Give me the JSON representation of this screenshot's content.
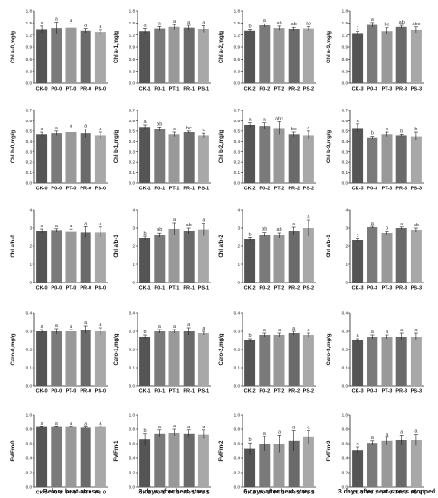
{
  "column_titles": [
    "Before heat-stress",
    "3 days after heat-stress",
    "6 days after heat-stress",
    "3 days after heat-stress stopped"
  ],
  "chart_data": [
    {
      "type": "bar",
      "row": 0,
      "col": 0,
      "ylabel": "Chl a-0,mg/g",
      "ylim": [
        0,
        1.8
      ],
      "yticks": [
        "0.0",
        "0.3",
        "0.6",
        "0.9",
        "1.2",
        "1.5",
        "1.8"
      ],
      "categories": [
        "CK-0",
        "P0-0",
        "PT-0",
        "PR-0",
        "PS-0"
      ],
      "values": [
        1.34,
        1.37,
        1.38,
        1.31,
        1.28
      ],
      "errors": [
        0.08,
        0.15,
        0.1,
        0.05,
        0.05
      ],
      "letters": [
        "a",
        "a",
        "a",
        "a",
        "a"
      ]
    },
    {
      "type": "bar",
      "row": 0,
      "col": 1,
      "ylabel": "Chl a-1,mg/g",
      "ylim": [
        0,
        1.8
      ],
      "yticks": [
        "0.0",
        "0.3",
        "0.6",
        "0.9",
        "1.2",
        "1.5",
        "1.8"
      ],
      "categories": [
        "CK-1",
        "P0-1",
        "PT-1",
        "PR-1",
        "PS-1"
      ],
      "values": [
        1.3,
        1.36,
        1.4,
        1.38,
        1.35
      ],
      "errors": [
        0.06,
        0.05,
        0.06,
        0.06,
        0.08
      ],
      "letters": [
        "a",
        "a",
        "a",
        "a",
        "a"
      ]
    },
    {
      "type": "bar",
      "row": 0,
      "col": 2,
      "ylabel": "Chl a-2,mg/g",
      "ylim": [
        0,
        1.8
      ],
      "yticks": [
        "0.0",
        "0.3",
        "0.6",
        "0.9",
        "1.2",
        "1.5",
        "1.8"
      ],
      "categories": [
        "CK-2",
        "P0-2",
        "PT-2",
        "PR-2",
        "PS-2"
      ],
      "values": [
        1.31,
        1.44,
        1.37,
        1.35,
        1.36
      ],
      "errors": [
        0.03,
        0.04,
        0.05,
        0.04,
        0.05
      ],
      "letters": [
        "b",
        "a",
        "ab",
        "ab",
        "ab"
      ]
    },
    {
      "type": "bar",
      "row": 0,
      "col": 3,
      "ylabel": "Chl a-3,mg/g",
      "ylim": [
        0,
        1.8
      ],
      "yticks": [
        "0.0",
        "0.3",
        "0.6",
        "0.9",
        "1.2",
        "1.5",
        "1.8"
      ],
      "categories": [
        "CK-3",
        "P0-3",
        "PT-3",
        "PR-3",
        "PS-3"
      ],
      "values": [
        1.25,
        1.45,
        1.3,
        1.4,
        1.33
      ],
      "errors": [
        0.04,
        0.06,
        0.08,
        0.04,
        0.07
      ],
      "letters": [
        "c",
        "a",
        "bc",
        "ab",
        "abc"
      ]
    },
    {
      "type": "bar",
      "row": 1,
      "col": 0,
      "ylabel": "Chl b-0,mg/g",
      "ylim": [
        0,
        0.7
      ],
      "yticks": [
        "0.0",
        "0.1",
        "0.2",
        "0.3",
        "0.4",
        "0.5",
        "0.6",
        "0.7"
      ],
      "categories": [
        "CK-0",
        "P0-0",
        "PT-0",
        "PR-0",
        "PS-0"
      ],
      "values": [
        0.47,
        0.48,
        0.49,
        0.48,
        0.46
      ],
      "errors": [
        0.02,
        0.02,
        0.03,
        0.04,
        0.03
      ],
      "letters": [
        "a",
        "a",
        "a",
        "a",
        "a"
      ]
    },
    {
      "type": "bar",
      "row": 1,
      "col": 1,
      "ylabel": "Chl b-1,mg/g",
      "ylim": [
        0,
        0.7
      ],
      "yticks": [
        "0.0",
        "0.1",
        "0.2",
        "0.3",
        "0.4",
        "0.5",
        "0.6",
        "0.7"
      ],
      "categories": [
        "CK-1",
        "P0-1",
        "PT-1",
        "PR-1",
        "PS-1"
      ],
      "values": [
        0.54,
        0.52,
        0.47,
        0.49,
        0.46
      ],
      "errors": [
        0.02,
        0.02,
        0.02,
        0.01,
        0.02
      ],
      "letters": [
        "a",
        "ab",
        "c",
        "bc",
        "c"
      ]
    },
    {
      "type": "bar",
      "row": 1,
      "col": 2,
      "ylabel": "Chl b-2,mg/g",
      "ylim": [
        0,
        0.7
      ],
      "yticks": [
        "0.0",
        "0.1",
        "0.2",
        "0.3",
        "0.4",
        "0.5",
        "0.6",
        "0.7"
      ],
      "categories": [
        "CK-2",
        "P0-2",
        "PT-2",
        "PR-2",
        "PS-2"
      ],
      "values": [
        0.56,
        0.55,
        0.53,
        0.47,
        0.46
      ],
      "errors": [
        0.02,
        0.03,
        0.06,
        0.02,
        0.04
      ],
      "letters": [
        "a",
        "a",
        "abc",
        "bc",
        "c"
      ]
    },
    {
      "type": "bar",
      "row": 1,
      "col": 3,
      "ylabel": "Chl b-3,mg/g",
      "ylim": [
        0,
        0.7
      ],
      "yticks": [
        "0.0",
        "0.1",
        "0.2",
        "0.3",
        "0.4",
        "0.5",
        "0.6",
        "0.7"
      ],
      "categories": [
        "CK-3",
        "P0-3",
        "PT-3",
        "PR-3",
        "PS-3"
      ],
      "values": [
        0.53,
        0.44,
        0.47,
        0.46,
        0.45
      ],
      "errors": [
        0.04,
        0.01,
        0.02,
        0.01,
        0.04
      ],
      "letters": [
        "a",
        "b",
        "b",
        "b",
        "b"
      ]
    },
    {
      "type": "bar",
      "row": 2,
      "col": 0,
      "ylabel": "Chl a/b-0",
      "ylim": [
        0,
        4
      ],
      "yticks": [
        "0",
        "1",
        "2",
        "3",
        "4"
      ],
      "categories": [
        "CK-0",
        "P0-0",
        "PT-0",
        "PR-0",
        "PS-0"
      ],
      "values": [
        2.85,
        2.88,
        2.82,
        2.78,
        2.78
      ],
      "errors": [
        0.1,
        0.08,
        0.12,
        0.3,
        0.28
      ],
      "letters": [
        "a",
        "a",
        "a",
        "a",
        "a"
      ]
    },
    {
      "type": "bar",
      "row": 2,
      "col": 1,
      "ylabel": "Chl a/b-1",
      "ylim": [
        0,
        4
      ],
      "yticks": [
        "0",
        "1",
        "2",
        "3",
        "4"
      ],
      "categories": [
        "CK-1",
        "P0-1",
        "PT-1",
        "PR-1",
        "PS-1"
      ],
      "values": [
        2.45,
        2.62,
        2.95,
        2.85,
        2.92
      ],
      "errors": [
        0.1,
        0.12,
        0.35,
        0.15,
        0.35
      ],
      "letters": [
        "b",
        "ab",
        "a",
        "ab",
        "a"
      ]
    },
    {
      "type": "bar",
      "row": 2,
      "col": 2,
      "ylabel": "Chl a/b-2",
      "ylim": [
        0,
        4
      ],
      "yticks": [
        "0",
        "1",
        "2",
        "3",
        "4"
      ],
      "categories": [
        "CK-2",
        "P0-2",
        "PT-2",
        "PR-2",
        "PS-2"
      ],
      "values": [
        2.4,
        2.65,
        2.6,
        2.85,
        3.0
      ],
      "errors": [
        0.08,
        0.12,
        0.15,
        0.2,
        0.45
      ],
      "letters": [
        "b",
        "ab",
        "ab",
        "a",
        "a"
      ]
    },
    {
      "type": "bar",
      "row": 2,
      "col": 3,
      "ylabel": "Chl a/b-3",
      "ylim": [
        0,
        4
      ],
      "yticks": [
        "0",
        "1",
        "2",
        "3",
        "4"
      ],
      "categories": [
        "CK-3",
        "P0-3",
        "PT-3",
        "PR-3",
        "PS-3"
      ],
      "values": [
        2.35,
        3.05,
        2.75,
        3.0,
        2.9
      ],
      "errors": [
        0.08,
        0.05,
        0.08,
        0.06,
        0.1
      ],
      "letters": [
        "c",
        "a",
        "b",
        "a",
        "ab"
      ]
    },
    {
      "type": "bar",
      "row": 3,
      "col": 0,
      "ylabel": "Caro-0,mg/g",
      "ylim": [
        0,
        0.4
      ],
      "yticks": [
        "0.0",
        "0.1",
        "0.2",
        "0.3",
        "0.4"
      ],
      "categories": [
        "CK-0",
        "P0-0",
        "PT-0",
        "PR-0",
        "PS-0"
      ],
      "values": [
        0.3,
        0.3,
        0.3,
        0.31,
        0.3
      ],
      "errors": [
        0.01,
        0.015,
        0.01,
        0.02,
        0.02
      ],
      "letters": [
        "a",
        "a",
        "a",
        "a",
        "a"
      ]
    },
    {
      "type": "bar",
      "row": 3,
      "col": 1,
      "ylabel": "Caro-1,mg/g",
      "ylim": [
        0,
        0.4
      ],
      "yticks": [
        "0.0",
        "0.1",
        "0.2",
        "0.3",
        "0.4"
      ],
      "categories": [
        "CK-1",
        "P0-1",
        "PT-1",
        "PR-1",
        "PS-1"
      ],
      "values": [
        0.27,
        0.3,
        0.3,
        0.3,
        0.29
      ],
      "errors": [
        0.01,
        0.01,
        0.01,
        0.02,
        0.01
      ],
      "letters": [
        "b",
        "a",
        "a",
        "a",
        "a"
      ]
    },
    {
      "type": "bar",
      "row": 3,
      "col": 2,
      "ylabel": "Caro-2,mg/g",
      "ylim": [
        0,
        0.4
      ],
      "yticks": [
        "0.0",
        "0.1",
        "0.2",
        "0.3",
        "0.4"
      ],
      "categories": [
        "CK-2",
        "P0-2",
        "PT-2",
        "PR-2",
        "PS-2"
      ],
      "values": [
        0.25,
        0.28,
        0.28,
        0.29,
        0.28
      ],
      "errors": [
        0.01,
        0.01,
        0.01,
        0.01,
        0.01
      ],
      "letters": [
        "b",
        "a",
        "a",
        "a",
        "a"
      ]
    },
    {
      "type": "bar",
      "row": 3,
      "col": 3,
      "ylabel": "Caro-3,mg/g",
      "ylim": [
        0,
        0.4
      ],
      "yticks": [
        "0.0",
        "0.1",
        "0.2",
        "0.3",
        "0.4"
      ],
      "categories": [
        "CK-3",
        "P0-3",
        "PT-3",
        "PR-3",
        "PS-3"
      ],
      "values": [
        0.25,
        0.27,
        0.27,
        0.27,
        0.27
      ],
      "errors": [
        0.01,
        0.01,
        0.01,
        0.02,
        0.02
      ],
      "letters": [
        "a",
        "a",
        "a",
        "a",
        "a"
      ]
    },
    {
      "type": "bar",
      "row": 4,
      "col": 0,
      "ylabel": "Fv/Fm-0",
      "ylim": [
        0,
        1.0
      ],
      "yticks": [
        "0.0",
        "0.2",
        "0.4",
        "0.6",
        "0.8",
        "1.0"
      ],
      "categories": [
        "CK-0",
        "P0-0",
        "PT-0",
        "PR-0",
        "PS-0"
      ],
      "values": [
        0.83,
        0.83,
        0.83,
        0.82,
        0.83
      ],
      "errors": [
        0.005,
        0.005,
        0.005,
        0.01,
        0.01
      ],
      "letters": [
        "a",
        "a",
        "a",
        "a",
        "a"
      ]
    },
    {
      "type": "bar",
      "row": 4,
      "col": 1,
      "ylabel": "Fv/Fm-1",
      "ylim": [
        0,
        1.0
      ],
      "yticks": [
        "0.0",
        "0.2",
        "0.4",
        "0.6",
        "0.8",
        "1.0"
      ],
      "categories": [
        "CK-1",
        "P0-1",
        "PT-1",
        "PR-1",
        "PS-1"
      ],
      "values": [
        0.66,
        0.74,
        0.75,
        0.74,
        0.73
      ],
      "errors": [
        0.08,
        0.05,
        0.05,
        0.05,
        0.06
      ],
      "letters": [
        "b",
        "a",
        "a",
        "a",
        "a"
      ]
    },
    {
      "type": "bar",
      "row": 4,
      "col": 2,
      "ylabel": "Fv/Fm-2",
      "ylim": [
        0,
        1.0
      ],
      "yticks": [
        "0.0",
        "0.2",
        "0.4",
        "0.6",
        "0.8",
        "1.0"
      ],
      "categories": [
        "CK-2",
        "P0-2",
        "PT-2",
        "PR-2",
        "PS-2"
      ],
      "values": [
        0.53,
        0.6,
        0.6,
        0.64,
        0.69
      ],
      "errors": [
        0.08,
        0.1,
        0.12,
        0.14,
        0.09
      ],
      "letters": [
        "b",
        "a",
        "a",
        "a",
        "a"
      ]
    },
    {
      "type": "bar",
      "row": 4,
      "col": 3,
      "ylabel": "Fv/Fm-3",
      "ylim": [
        0,
        1.0
      ],
      "yticks": [
        "0.0",
        "0.2",
        "0.4",
        "0.6",
        "0.8",
        "1.0"
      ],
      "categories": [
        "CK-3",
        "P0-3",
        "PT-3",
        "PR-3",
        "PS-3"
      ],
      "values": [
        0.51,
        0.61,
        0.64,
        0.65,
        0.65
      ],
      "errors": [
        0.04,
        0.03,
        0.05,
        0.07,
        0.08
      ],
      "letters": [
        "b",
        "a",
        "a",
        "a",
        "a"
      ]
    }
  ],
  "colors": {
    "bars": [
      "#555555",
      "#7a7a7a",
      "#999999",
      "#6a6a6a",
      "#a8a8a8"
    ],
    "axis": "#222222",
    "letter": "#444444"
  }
}
